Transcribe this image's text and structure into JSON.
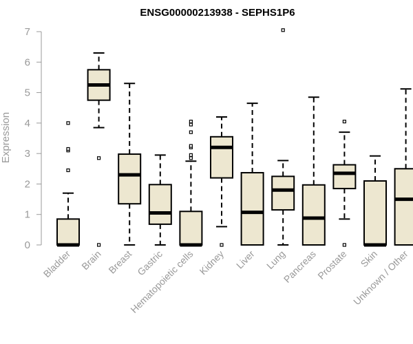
{
  "chart_data": {
    "type": "box",
    "title": "ENSG00000213938 - SEPHS1P6",
    "xlabel": "",
    "ylabel": "Expression",
    "ylim": [
      0,
      7
    ],
    "yticks": [
      0,
      1,
      2,
      3,
      4,
      5,
      6,
      7
    ],
    "grid": false,
    "box_fill": "#ede7d0",
    "median_color": "#000000",
    "tick_color": "#999999",
    "categories": [
      "Bladder",
      "Brain",
      "Breast",
      "Gastric",
      "Hematopoietic cells",
      "Kidney",
      "Liver",
      "Lung",
      "Pancreas",
      "Prostate",
      "Skin",
      "Unknown / Other"
    ],
    "boxes": [
      {
        "category": "Bladder",
        "whisker_low": 0,
        "q1": 0,
        "median": 0,
        "q3": 0.85,
        "whisker_high": 1.7,
        "outliers": [
          2.45,
          3.1,
          3.15,
          4.0
        ]
      },
      {
        "category": "Brain",
        "whisker_low": 3.85,
        "q1": 4.75,
        "median": 5.25,
        "q3": 5.75,
        "whisker_high": 6.3,
        "outliers": [
          0,
          2.85
        ]
      },
      {
        "category": "Breast",
        "whisker_low": 0,
        "q1": 1.35,
        "median": 2.3,
        "q3": 2.98,
        "whisker_high": 5.3,
        "outliers": []
      },
      {
        "category": "Gastric",
        "whisker_low": 0,
        "q1": 0.68,
        "median": 1.05,
        "q3": 1.98,
        "whisker_high": 2.95,
        "outliers": []
      },
      {
        "category": "Hematopoietic cells",
        "whisker_low": 0,
        "q1": 0,
        "median": 0,
        "q3": 1.1,
        "whisker_high": 2.75,
        "outliers": [
          2.85,
          2.95,
          3.2,
          3.25,
          3.7,
          3.95,
          4.05
        ]
      },
      {
        "category": "Kidney",
        "whisker_low": 0.6,
        "q1": 2.2,
        "median": 3.2,
        "q3": 3.55,
        "whisker_high": 4.2,
        "outliers": [
          0
        ]
      },
      {
        "category": "Liver",
        "whisker_low": 0,
        "q1": 0,
        "median": 1.07,
        "q3": 2.37,
        "whisker_high": 4.65,
        "outliers": []
      },
      {
        "category": "Lung",
        "whisker_low": 0,
        "q1": 1.15,
        "median": 1.8,
        "q3": 2.25,
        "whisker_high": 2.77,
        "outliers": [
          7.05
        ]
      },
      {
        "category": "Pancreas",
        "whisker_low": 0,
        "q1": 0,
        "median": 0.88,
        "q3": 1.97,
        "whisker_high": 4.85,
        "outliers": []
      },
      {
        "category": "Prostate",
        "whisker_low": 0.85,
        "q1": 1.85,
        "median": 2.35,
        "q3": 2.63,
        "whisker_high": 3.7,
        "outliers": [
          0,
          4.05
        ]
      },
      {
        "category": "Skin",
        "whisker_low": 0,
        "q1": 0,
        "median": 0,
        "q3": 2.1,
        "whisker_high": 2.92,
        "outliers": []
      },
      {
        "category": "Unknown / Other",
        "whisker_low": 0,
        "q1": 0,
        "median": 1.5,
        "q3": 2.5,
        "whisker_high": 5.12,
        "outliers": []
      }
    ]
  }
}
